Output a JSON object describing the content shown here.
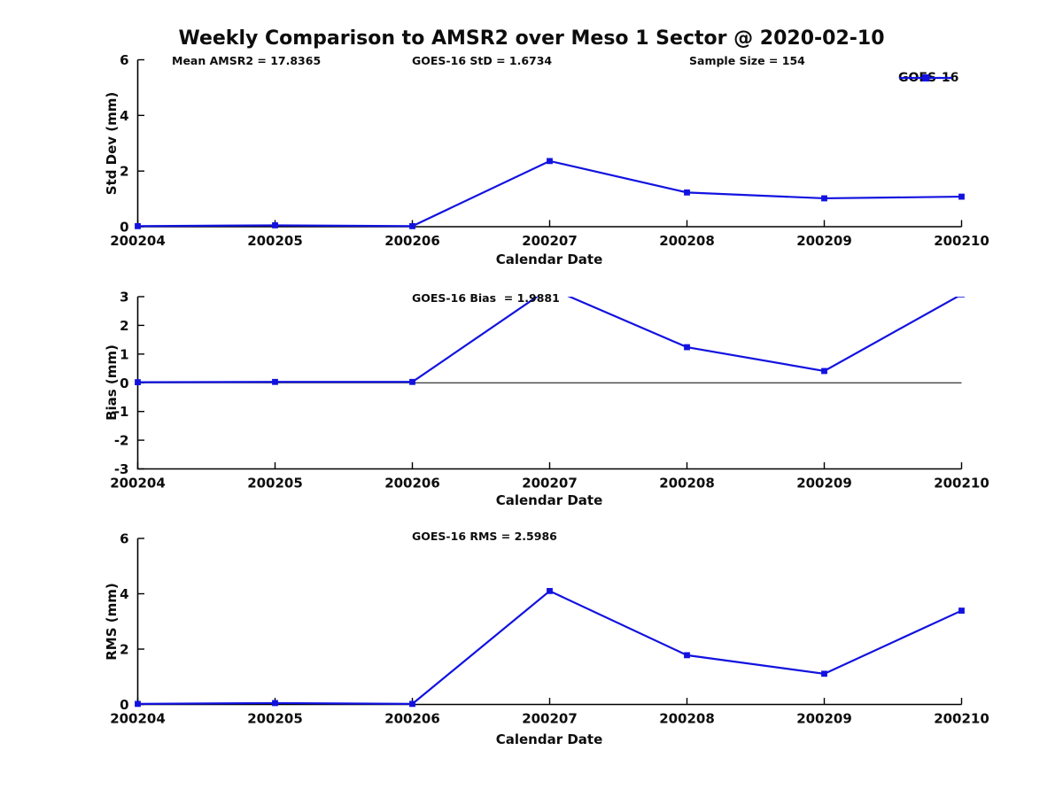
{
  "figure": {
    "title": "Weekly Comparison to AMSR2 over Meso 1 Sector @ 2020-02-10",
    "background_color": "#ffffff",
    "series_color": "#1212e0",
    "axis_color": "#000000",
    "legend": {
      "label": "GOES-16",
      "marker": "filled-square"
    }
  },
  "chart_data": [
    {
      "type": "line",
      "subplot": "std-dev",
      "ylabel": "Std Dev (mm)",
      "xlabel": "Calendar Date",
      "categories": [
        "200204",
        "200205",
        "200206",
        "200207",
        "200208",
        "200209",
        "200210"
      ],
      "ylim": [
        0,
        6
      ],
      "yticks": [
        0,
        2,
        4,
        6
      ],
      "grid": false,
      "zero_line": false,
      "legend_position": "top-right-outside",
      "series": [
        {
          "name": "GOES-16",
          "values": [
            0.02,
            0.05,
            0.02,
            2.36,
            1.23,
            1.02,
            1.08
          ]
        }
      ],
      "annotations": [
        {
          "text": "Mean AMSR2 = 17.8365"
        },
        {
          "text": "GOES-16 StD = 1.6734"
        },
        {
          "text": "Sample Size = 154"
        }
      ]
    },
    {
      "type": "line",
      "subplot": "bias",
      "ylabel": "Bias (mm)",
      "xlabel": "Calendar Date",
      "categories": [
        "200204",
        "200205",
        "200206",
        "200207",
        "200208",
        "200209",
        "200210"
      ],
      "ylim": [
        -3,
        3
      ],
      "yticks": [
        -3,
        -2,
        -1,
        0,
        1,
        2,
        3
      ],
      "grid": false,
      "zero_line": true,
      "series": [
        {
          "name": "GOES-16",
          "values": [
            0.02,
            0.03,
            0.03,
            3.3,
            1.24,
            0.41,
            3.08
          ]
        }
      ],
      "annotations": [
        {
          "text": "GOES-16 Bias  = 1.9881"
        }
      ]
    },
    {
      "type": "line",
      "subplot": "rms",
      "ylabel": "RMS (mm)",
      "xlabel": "Calendar Date",
      "categories": [
        "200204",
        "200205",
        "200206",
        "200207",
        "200208",
        "200209",
        "200210"
      ],
      "ylim": [
        0,
        6
      ],
      "yticks": [
        0,
        2,
        4,
        6
      ],
      "grid": false,
      "zero_line": false,
      "series": [
        {
          "name": "GOES-16",
          "values": [
            0.02,
            0.05,
            0.02,
            4.1,
            1.78,
            1.11,
            3.39
          ]
        }
      ],
      "annotations": [
        {
          "text": "GOES-16 RMS = 2.5986"
        }
      ]
    }
  ]
}
